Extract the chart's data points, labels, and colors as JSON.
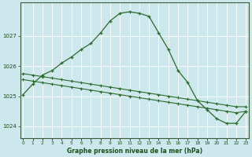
{
  "title": "Graphe pression niveau de la mer (hPa)",
  "bg_color": "#cce8ec",
  "grid_color": "#b0d4d8",
  "line_color": "#2d6a2d",
  "marker_color": "#2d6a2d",
  "label_color": "#1a4d1a",
  "x_ticks": [
    0,
    1,
    2,
    3,
    4,
    5,
    6,
    7,
    8,
    9,
    10,
    11,
    12,
    13,
    14,
    15,
    16,
    17,
    18,
    19,
    20,
    21,
    22,
    23
  ],
  "y_ticks": [
    1024,
    1025,
    1026,
    1027
  ],
  "ylim": [
    1023.6,
    1028.1
  ],
  "xlim": [
    -0.3,
    23.3
  ],
  "series1_x": [
    0,
    1,
    2,
    3,
    4,
    5,
    6,
    7,
    8,
    9,
    10,
    11,
    12,
    13,
    14,
    15,
    16,
    17,
    18,
    19,
    20,
    21,
    22,
    23
  ],
  "series1_y": [
    1025.05,
    1025.4,
    1025.7,
    1025.85,
    1026.1,
    1026.3,
    1026.55,
    1026.75,
    1027.1,
    1027.5,
    1027.75,
    1027.8,
    1027.75,
    1027.65,
    1027.1,
    1026.55,
    1025.85,
    1025.45,
    1024.85,
    1024.55,
    1024.25,
    1024.1,
    1024.1,
    1024.5
  ],
  "series2_x": [
    0,
    1,
    2,
    3,
    4,
    5,
    6,
    7,
    8,
    9,
    10,
    11,
    12,
    13,
    14,
    15,
    16,
    17,
    18,
    19,
    20,
    21,
    22,
    23
  ],
  "series2_y": [
    1025.55,
    1025.5,
    1025.45,
    1025.4,
    1025.35,
    1025.3,
    1025.25,
    1025.2,
    1025.15,
    1025.1,
    1025.05,
    1025.0,
    1024.95,
    1024.9,
    1024.85,
    1024.8,
    1024.75,
    1024.7,
    1024.65,
    1024.6,
    1024.55,
    1024.5,
    1024.45,
    1024.5
  ],
  "series3_x": [
    0,
    1,
    2,
    3,
    4,
    5,
    6,
    7,
    8,
    9,
    10,
    11,
    12,
    13,
    14,
    15,
    16,
    17,
    18,
    19,
    20,
    21,
    22,
    23
  ],
  "series3_y": [
    1025.75,
    1025.7,
    1025.65,
    1025.6,
    1025.55,
    1025.5,
    1025.45,
    1025.4,
    1025.35,
    1025.3,
    1025.25,
    1025.2,
    1025.15,
    1025.1,
    1025.05,
    1025.0,
    1024.95,
    1024.9,
    1024.85,
    1024.8,
    1024.75,
    1024.7,
    1024.65,
    1024.65
  ]
}
